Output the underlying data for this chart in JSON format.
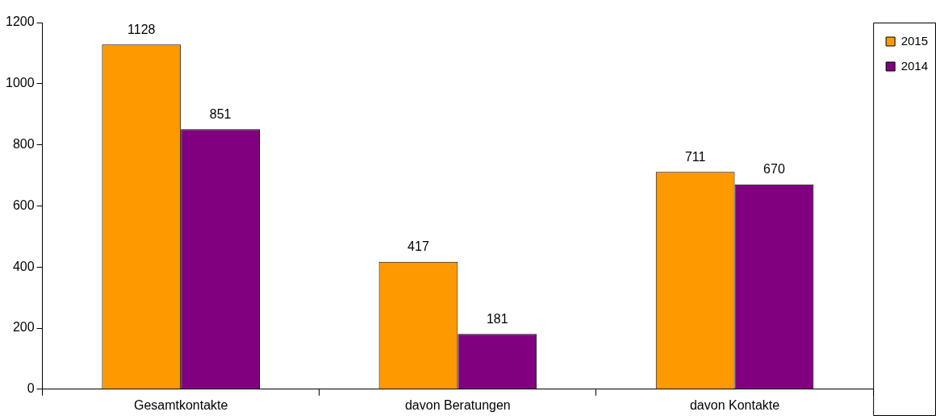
{
  "chart_data": {
    "type": "bar",
    "categories": [
      "Gesamtkontakte",
      "davon Beratungen",
      "davon Kontakte"
    ],
    "series": [
      {
        "name": "2015",
        "color": "#ff9900",
        "values": [
          1128,
          417,
          711
        ]
      },
      {
        "name": "2014",
        "color": "#800080",
        "values": [
          851,
          181,
          670
        ]
      }
    ],
    "ylim": [
      0,
      1200
    ],
    "yticks": [
      0,
      200,
      400,
      600,
      800,
      1000,
      1200
    ],
    "grid": false,
    "legend": "top right",
    "data_labels": true
  }
}
